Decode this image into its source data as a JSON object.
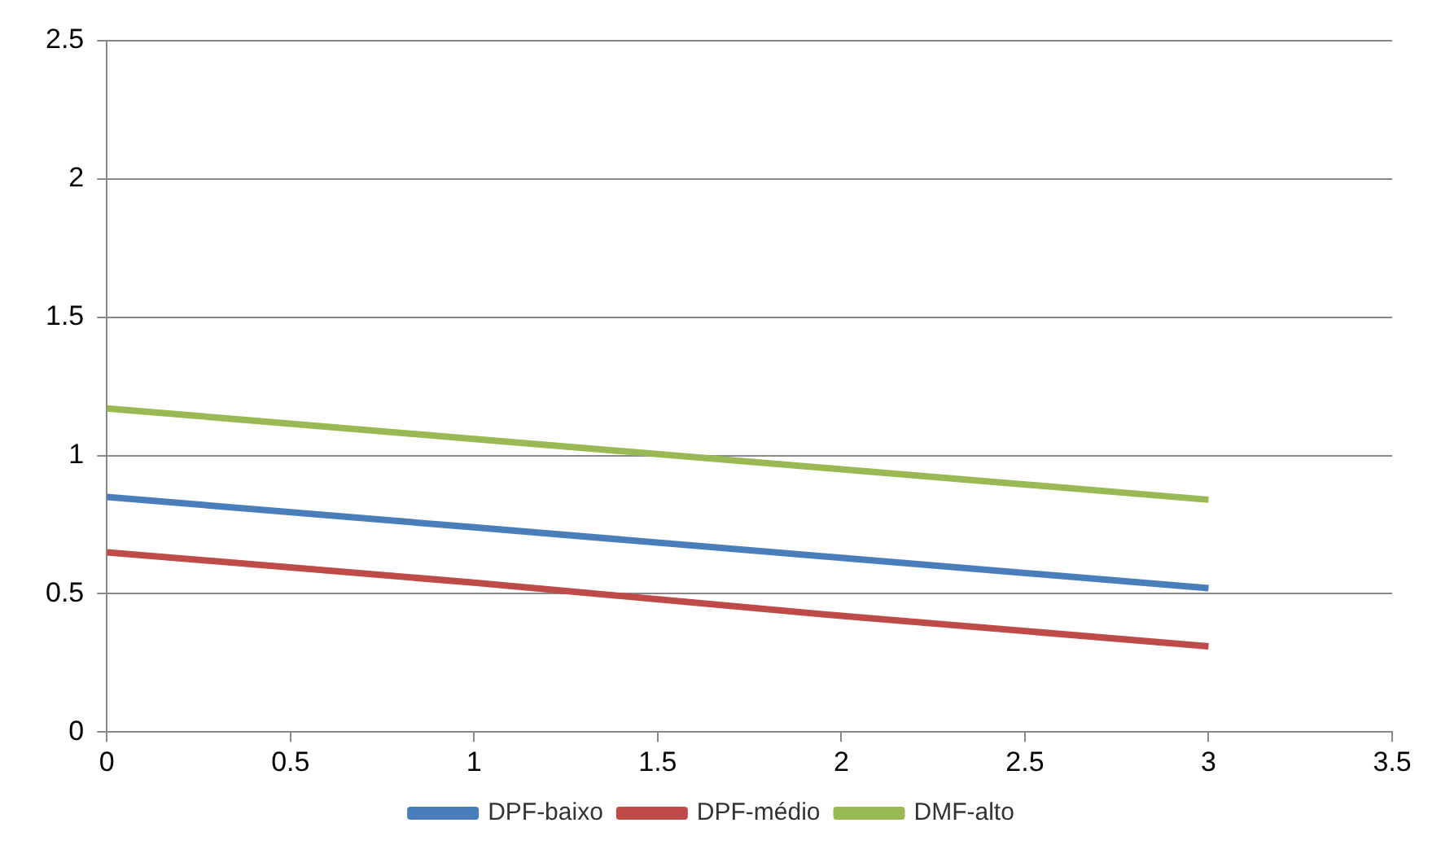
{
  "chart_data": {
    "type": "line",
    "x": [
      0,
      1,
      2,
      3
    ],
    "series": [
      {
        "name": "DPF-baixo",
        "color": "#4a7ebb",
        "values": [
          0.85,
          0.74,
          0.63,
          0.52
        ]
      },
      {
        "name": "DPF-médio",
        "color": "#be4b48",
        "values": [
          0.65,
          0.54,
          0.42,
          0.31
        ]
      },
      {
        "name": "DMF-alto",
        "color": "#98b954",
        "values": [
          1.17,
          1.06,
          0.95,
          0.84
        ]
      }
    ],
    "xlim": [
      0,
      3.5
    ],
    "xticks": [
      0,
      0.5,
      1,
      1.5,
      2,
      2.5,
      3,
      3.5
    ],
    "ylim": [
      0,
      2.5
    ],
    "yticks": [
      0,
      0.5,
      1,
      1.5,
      2,
      2.5
    ],
    "grid": "y",
    "legend": "bottom",
    "marker": "none",
    "line_style": "solid"
  }
}
